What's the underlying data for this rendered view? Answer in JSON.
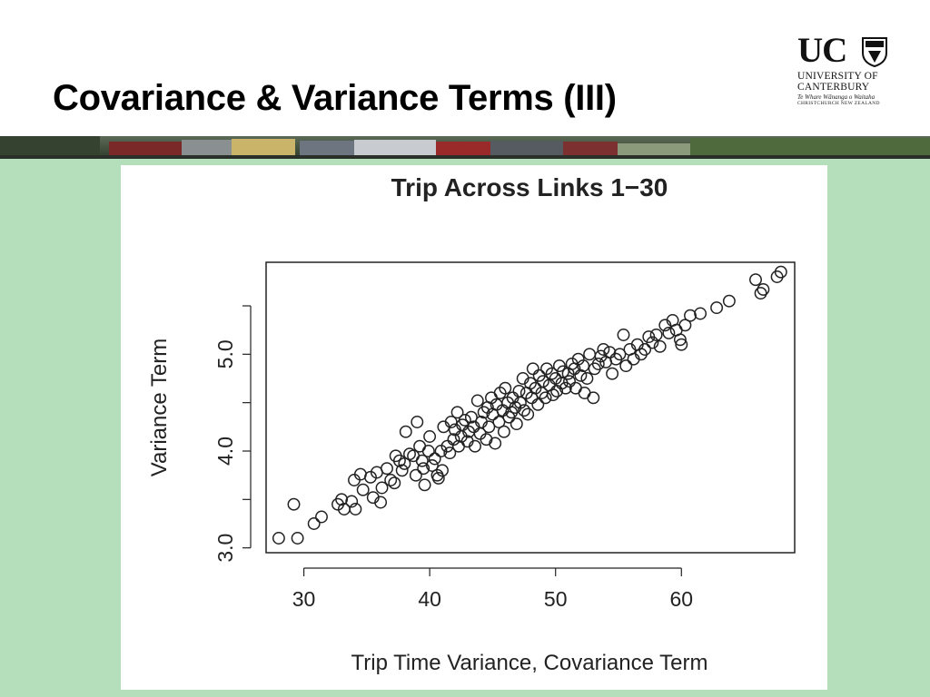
{
  "slide": {
    "title": "Covariance & Variance Terms (III)"
  },
  "logo": {
    "wordmark": "UC",
    "line1": "UNIVERSITY OF",
    "line2": "CANTERBURY",
    "line3": "Te Whare Wānanga o Waitaha",
    "line4": "CHRISTCHURCH NEW ZEALAND"
  },
  "colors": {
    "content_background": "#b5dfbb",
    "plot_background": "#ffffff",
    "marker_stroke": "#222222"
  },
  "chart_data": {
    "type": "scatter",
    "title": "Trip Across Links 1−30",
    "xlabel": "Trip Time Variance, Covariance Term",
    "ylabel": "Variance Term",
    "xlim": [
      27,
      69
    ],
    "ylim": [
      2.95,
      5.95
    ],
    "xticks": [
      "30",
      "40",
      "50",
      "60"
    ],
    "yticks": [
      "3.0",
      "4.0",
      "5.0"
    ],
    "ytick_minor": [
      3.5,
      4.5,
      5.5
    ],
    "marker": "open-circle",
    "grid": false,
    "points": [
      [
        28.0,
        3.1
      ],
      [
        29.5,
        3.1
      ],
      [
        29.2,
        3.45
      ],
      [
        30.8,
        3.25
      ],
      [
        31.4,
        3.32
      ],
      [
        32.7,
        3.45
      ],
      [
        33.0,
        3.5
      ],
      [
        33.2,
        3.4
      ],
      [
        33.8,
        3.48
      ],
      [
        34.0,
        3.7
      ],
      [
        34.1,
        3.4
      ],
      [
        34.5,
        3.76
      ],
      [
        34.7,
        3.6
      ],
      [
        35.3,
        3.73
      ],
      [
        35.5,
        3.52
      ],
      [
        35.8,
        3.78
      ],
      [
        36.1,
        3.47
      ],
      [
        36.2,
        3.62
      ],
      [
        36.6,
        3.82
      ],
      [
        36.9,
        3.7
      ],
      [
        37.2,
        3.67
      ],
      [
        37.3,
        3.95
      ],
      [
        37.6,
        3.9
      ],
      [
        37.8,
        3.8
      ],
      [
        38.0,
        3.87
      ],
      [
        38.1,
        4.2
      ],
      [
        38.4,
        3.97
      ],
      [
        38.7,
        3.95
      ],
      [
        38.9,
        3.75
      ],
      [
        39.0,
        4.3
      ],
      [
        39.2,
        4.05
      ],
      [
        39.4,
        3.9
      ],
      [
        39.5,
        3.82
      ],
      [
        39.6,
        3.65
      ],
      [
        39.9,
        4.0
      ],
      [
        40.0,
        4.15
      ],
      [
        40.2,
        3.85
      ],
      [
        40.4,
        3.92
      ],
      [
        40.6,
        3.75
      ],
      [
        40.7,
        3.72
      ],
      [
        40.9,
        4.0
      ],
      [
        41.0,
        3.8
      ],
      [
        41.1,
        4.25
      ],
      [
        41.4,
        4.05
      ],
      [
        41.6,
        3.98
      ],
      [
        41.7,
        4.3
      ],
      [
        41.9,
        4.12
      ],
      [
        42.0,
        4.22
      ],
      [
        42.2,
        4.4
      ],
      [
        42.3,
        4.05
      ],
      [
        42.5,
        4.15
      ],
      [
        42.6,
        4.27
      ],
      [
        42.8,
        4.32
      ],
      [
        43.0,
        4.1
      ],
      [
        43.1,
        4.2
      ],
      [
        43.3,
        4.35
      ],
      [
        43.5,
        4.25
      ],
      [
        43.6,
        4.05
      ],
      [
        43.8,
        4.52
      ],
      [
        44.0,
        4.18
      ],
      [
        44.1,
        4.3
      ],
      [
        44.3,
        4.4
      ],
      [
        44.5,
        4.12
      ],
      [
        44.6,
        4.45
      ],
      [
        44.7,
        4.25
      ],
      [
        44.9,
        4.55
      ],
      [
        45.0,
        4.38
      ],
      [
        45.2,
        4.08
      ],
      [
        45.3,
        4.48
      ],
      [
        45.5,
        4.3
      ],
      [
        45.6,
        4.6
      ],
      [
        45.8,
        4.42
      ],
      [
        45.9,
        4.2
      ],
      [
        46.0,
        4.65
      ],
      [
        46.2,
        4.5
      ],
      [
        46.3,
        4.35
      ],
      [
        46.5,
        4.4
      ],
      [
        46.6,
        4.55
      ],
      [
        46.8,
        4.45
      ],
      [
        46.9,
        4.28
      ],
      [
        47.1,
        4.62
      ],
      [
        47.2,
        4.5
      ],
      [
        47.4,
        4.75
      ],
      [
        47.5,
        4.42
      ],
      [
        47.7,
        4.6
      ],
      [
        47.8,
        4.38
      ],
      [
        48.0,
        4.7
      ],
      [
        48.1,
        4.55
      ],
      [
        48.2,
        4.85
      ],
      [
        48.4,
        4.65
      ],
      [
        48.6,
        4.48
      ],
      [
        48.7,
        4.78
      ],
      [
        48.9,
        4.6
      ],
      [
        49.0,
        4.72
      ],
      [
        49.2,
        4.55
      ],
      [
        49.3,
        4.85
      ],
      [
        49.5,
        4.68
      ],
      [
        49.7,
        4.8
      ],
      [
        49.8,
        4.58
      ],
      [
        50.0,
        4.75
      ],
      [
        50.1,
        4.62
      ],
      [
        50.3,
        4.88
      ],
      [
        50.5,
        4.7
      ],
      [
        50.6,
        4.82
      ],
      [
        50.8,
        4.65
      ],
      [
        51.0,
        4.8
      ],
      [
        51.1,
        4.72
      ],
      [
        51.3,
        4.9
      ],
      [
        51.5,
        4.85
      ],
      [
        51.6,
        4.65
      ],
      [
        51.8,
        4.95
      ],
      [
        52.0,
        4.78
      ],
      [
        52.2,
        4.88
      ],
      [
        52.3,
        4.6
      ],
      [
        52.5,
        4.75
      ],
      [
        52.7,
        5.0
      ],
      [
        53.0,
        4.55
      ],
      [
        53.1,
        4.85
      ],
      [
        53.4,
        4.9
      ],
      [
        53.6,
        4.98
      ],
      [
        53.8,
        5.05
      ],
      [
        54.0,
        4.92
      ],
      [
        54.3,
        5.02
      ],
      [
        54.5,
        4.8
      ],
      [
        54.8,
        4.95
      ],
      [
        55.1,
        5.0
      ],
      [
        55.4,
        5.2
      ],
      [
        55.6,
        4.88
      ],
      [
        55.9,
        5.05
      ],
      [
        56.2,
        4.95
      ],
      [
        56.5,
        5.1
      ],
      [
        56.8,
        5.0
      ],
      [
        57.1,
        5.05
      ],
      [
        57.4,
        5.18
      ],
      [
        57.7,
        5.12
      ],
      [
        58.0,
        5.2
      ],
      [
        58.3,
        5.08
      ],
      [
        58.7,
        5.3
      ],
      [
        59.0,
        5.22
      ],
      [
        59.3,
        5.35
      ],
      [
        59.6,
        5.25
      ],
      [
        59.9,
        5.15
      ],
      [
        60.0,
        5.1
      ],
      [
        60.3,
        5.3
      ],
      [
        60.7,
        5.4
      ],
      [
        61.5,
        5.42
      ],
      [
        62.8,
        5.48
      ],
      [
        63.8,
        5.55
      ],
      [
        65.9,
        5.77
      ],
      [
        66.3,
        5.63
      ],
      [
        66.5,
        5.67
      ],
      [
        67.6,
        5.8
      ],
      [
        67.9,
        5.85
      ]
    ]
  }
}
